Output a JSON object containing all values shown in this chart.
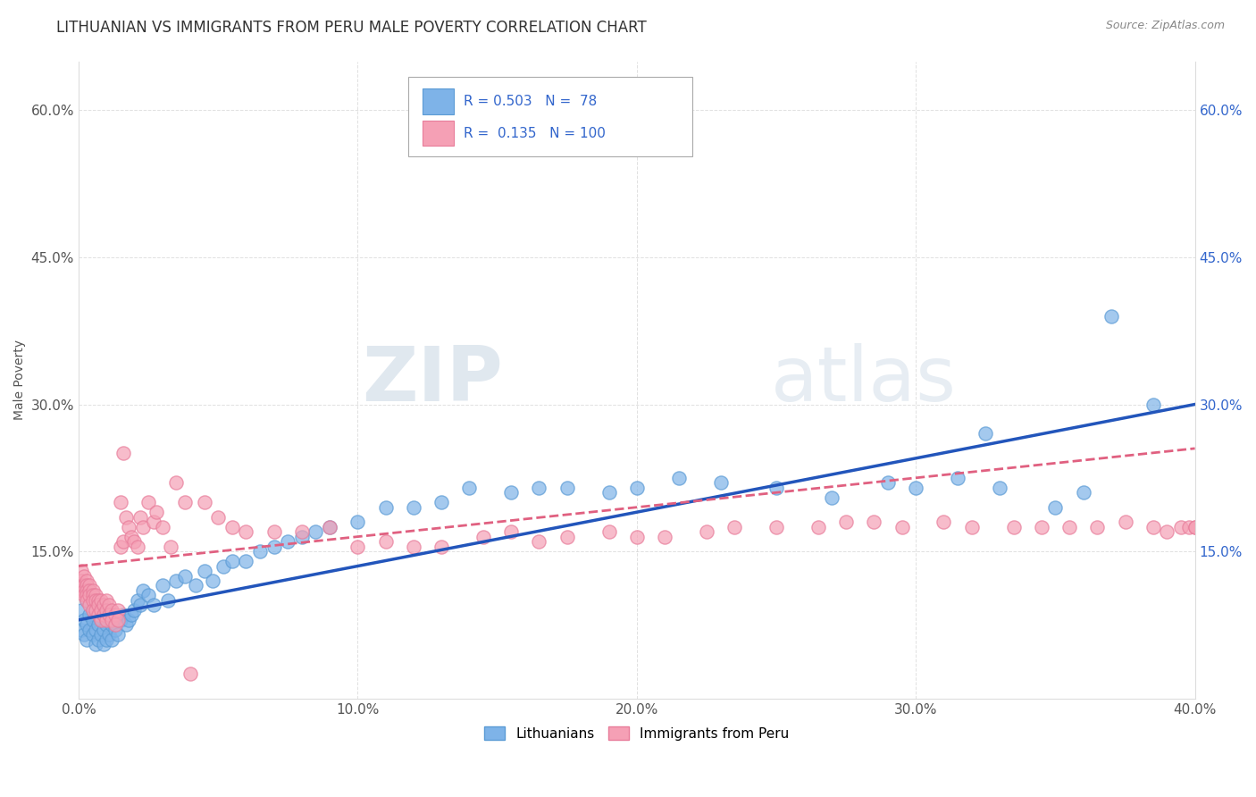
{
  "title": "LITHUANIAN VS IMMIGRANTS FROM PERU MALE POVERTY CORRELATION CHART",
  "source": "Source: ZipAtlas.com",
  "xlabel_label": "Lithuanians",
  "xlabel_label2": "Immigrants from Peru",
  "ylabel": "Male Poverty",
  "watermark_zip": "ZIP",
  "watermark_atlas": "atlas",
  "xlim": [
    0.0,
    0.4
  ],
  "ylim": [
    0.0,
    0.65
  ],
  "xticks": [
    0.0,
    0.1,
    0.2,
    0.3,
    0.4
  ],
  "yticks": [
    0.0,
    0.15,
    0.3,
    0.45,
    0.6
  ],
  "ytick_labels": [
    "",
    "15.0%",
    "30.0%",
    "45.0%",
    "60.0%"
  ],
  "xtick_labels": [
    "0.0%",
    "10.0%",
    "20.0%",
    "30.0%",
    "40.0%"
  ],
  "right_ytick_labels": [
    "",
    "15.0%",
    "30.0%",
    "45.0%",
    "60.0%"
  ],
  "blue_color": "#7EB3E8",
  "pink_color": "#F5A0B5",
  "blue_edge_color": "#5B9BD5",
  "pink_edge_color": "#E87C9A",
  "blue_line_color": "#2255BB",
  "pink_line_color": "#E06080",
  "R_blue": 0.503,
  "N_blue": 78,
  "R_pink": 0.135,
  "N_pink": 100,
  "legend_text_color": "#3366CC",
  "title_fontsize": 12,
  "axis_label_fontsize": 10,
  "tick_fontsize": 11,
  "background_color": "#FFFFFF",
  "grid_color": "#CCCCCC",
  "blue_line_intercept": 0.08,
  "blue_line_slope": 0.55,
  "pink_line_intercept": 0.135,
  "pink_line_slope": 0.3,
  "blue_scatter_x": [
    0.001,
    0.001,
    0.002,
    0.002,
    0.003,
    0.003,
    0.003,
    0.004,
    0.004,
    0.005,
    0.005,
    0.005,
    0.006,
    0.006,
    0.007,
    0.007,
    0.008,
    0.008,
    0.009,
    0.009,
    0.01,
    0.01,
    0.011,
    0.011,
    0.012,
    0.012,
    0.013,
    0.014,
    0.015,
    0.016,
    0.017,
    0.018,
    0.019,
    0.02,
    0.021,
    0.022,
    0.023,
    0.025,
    0.027,
    0.03,
    0.032,
    0.035,
    0.038,
    0.042,
    0.045,
    0.048,
    0.052,
    0.055,
    0.06,
    0.065,
    0.07,
    0.075,
    0.08,
    0.085,
    0.09,
    0.1,
    0.11,
    0.12,
    0.13,
    0.14,
    0.155,
    0.165,
    0.175,
    0.19,
    0.2,
    0.215,
    0.23,
    0.25,
    0.27,
    0.29,
    0.3,
    0.315,
    0.325,
    0.33,
    0.35,
    0.36,
    0.37,
    0.385
  ],
  "blue_scatter_y": [
    0.09,
    0.07,
    0.08,
    0.065,
    0.1,
    0.075,
    0.06,
    0.085,
    0.07,
    0.08,
    0.065,
    0.09,
    0.07,
    0.055,
    0.075,
    0.06,
    0.065,
    0.08,
    0.07,
    0.055,
    0.075,
    0.06,
    0.08,
    0.065,
    0.075,
    0.06,
    0.07,
    0.065,
    0.08,
    0.085,
    0.075,
    0.08,
    0.085,
    0.09,
    0.1,
    0.095,
    0.11,
    0.105,
    0.095,
    0.115,
    0.1,
    0.12,
    0.125,
    0.115,
    0.13,
    0.12,
    0.135,
    0.14,
    0.14,
    0.15,
    0.155,
    0.16,
    0.165,
    0.17,
    0.175,
    0.18,
    0.195,
    0.195,
    0.2,
    0.215,
    0.21,
    0.215,
    0.215,
    0.21,
    0.215,
    0.225,
    0.22,
    0.215,
    0.205,
    0.22,
    0.215,
    0.225,
    0.27,
    0.215,
    0.195,
    0.21,
    0.39,
    0.3
  ],
  "pink_scatter_x": [
    0.001,
    0.001,
    0.001,
    0.001,
    0.002,
    0.002,
    0.002,
    0.002,
    0.003,
    0.003,
    0.003,
    0.003,
    0.003,
    0.004,
    0.004,
    0.004,
    0.004,
    0.005,
    0.005,
    0.005,
    0.005,
    0.006,
    0.006,
    0.006,
    0.007,
    0.007,
    0.007,
    0.008,
    0.008,
    0.008,
    0.009,
    0.009,
    0.01,
    0.01,
    0.01,
    0.011,
    0.011,
    0.012,
    0.012,
    0.013,
    0.013,
    0.014,
    0.014,
    0.015,
    0.015,
    0.016,
    0.016,
    0.017,
    0.018,
    0.019,
    0.02,
    0.021,
    0.022,
    0.023,
    0.025,
    0.027,
    0.028,
    0.03,
    0.033,
    0.035,
    0.038,
    0.04,
    0.045,
    0.05,
    0.055,
    0.06,
    0.07,
    0.08,
    0.09,
    0.1,
    0.11,
    0.12,
    0.13,
    0.145,
    0.155,
    0.165,
    0.175,
    0.19,
    0.2,
    0.21,
    0.225,
    0.235,
    0.25,
    0.265,
    0.275,
    0.285,
    0.295,
    0.31,
    0.32,
    0.335,
    0.345,
    0.355,
    0.365,
    0.375,
    0.385,
    0.39,
    0.395,
    0.398,
    0.4,
    0.4
  ],
  "pink_scatter_y": [
    0.13,
    0.12,
    0.115,
    0.11,
    0.125,
    0.115,
    0.11,
    0.105,
    0.12,
    0.115,
    0.11,
    0.105,
    0.1,
    0.115,
    0.11,
    0.105,
    0.095,
    0.11,
    0.105,
    0.1,
    0.09,
    0.105,
    0.1,
    0.09,
    0.1,
    0.095,
    0.085,
    0.1,
    0.09,
    0.08,
    0.095,
    0.085,
    0.1,
    0.09,
    0.08,
    0.095,
    0.085,
    0.09,
    0.08,
    0.085,
    0.075,
    0.09,
    0.08,
    0.2,
    0.155,
    0.25,
    0.16,
    0.185,
    0.175,
    0.165,
    0.16,
    0.155,
    0.185,
    0.175,
    0.2,
    0.18,
    0.19,
    0.175,
    0.155,
    0.22,
    0.2,
    0.025,
    0.2,
    0.185,
    0.175,
    0.17,
    0.17,
    0.17,
    0.175,
    0.155,
    0.16,
    0.155,
    0.155,
    0.165,
    0.17,
    0.16,
    0.165,
    0.17,
    0.165,
    0.165,
    0.17,
    0.175,
    0.175,
    0.175,
    0.18,
    0.18,
    0.175,
    0.18,
    0.175,
    0.175,
    0.175,
    0.175,
    0.175,
    0.18,
    0.175,
    0.17,
    0.175,
    0.175,
    0.175,
    0.175
  ]
}
